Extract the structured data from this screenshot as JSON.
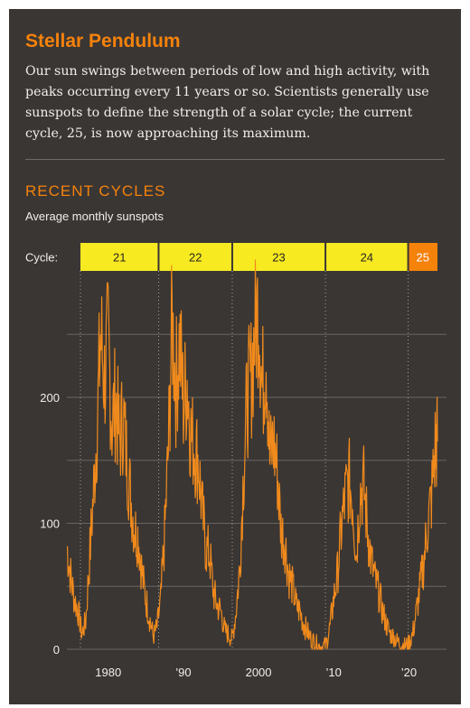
{
  "header": {
    "title": "Stellar Pendulum",
    "intro": "Our sun swings between periods of low and high activity, with peaks occurring every 11 years or so. Scientists generally use sunspots to define the strength of a solar cycle; the current cycle, 25, is now approaching its maximum."
  },
  "section": {
    "title": "RECENT CYCLES",
    "subtitle": "Average monthly sunspots"
  },
  "colors": {
    "background": "#3a3634",
    "accent": "#f5820b",
    "line": "#f08a1c",
    "cycle_band": "#f7ea21",
    "current_cycle": "#f5820b",
    "text": "#f1eeea"
  },
  "chart_data": {
    "type": "line",
    "ylabel": "Average monthly sunspots",
    "ylim": [
      0,
      280
    ],
    "xlim": [
      1974.5,
      2023.8
    ],
    "yticks": [
      {
        "value": 0,
        "label": "0"
      },
      {
        "value": 100,
        "label": "100"
      },
      {
        "value": 200,
        "label": "200"
      }
    ],
    "gridlines": [
      0,
      50,
      100,
      150,
      200,
      250
    ],
    "xticks": [
      {
        "value": 1980,
        "label": "1980"
      },
      {
        "value": 1990,
        "label": "’90"
      },
      {
        "value": 2000,
        "label": "2000"
      },
      {
        "value": 2010,
        "label": "’10"
      },
      {
        "value": 2020,
        "label": "’20"
      }
    ],
    "cycle_label": "Cycle:",
    "cycles": [
      {
        "label": "21",
        "start": 1976.3,
        "end": 1986.7,
        "current": false
      },
      {
        "label": "22",
        "start": 1986.7,
        "end": 1996.5,
        "current": false
      },
      {
        "label": "23",
        "start": 1996.5,
        "end": 2008.9,
        "current": false
      },
      {
        "label": "24",
        "start": 2008.9,
        "end": 2019.9,
        "current": false
      },
      {
        "label": "25",
        "start": 2019.9,
        "end": 2023.8,
        "current": true
      }
    ],
    "series": [
      {
        "x": [
          1974.5,
          1975.0,
          1975.5,
          1976.0,
          1976.5,
          1977.0,
          1977.5,
          1978.0,
          1978.5,
          1979.0,
          1979.5,
          1980.0,
          1980.5,
          1981.0,
          1981.5,
          1982.0,
          1982.5,
          1983.0,
          1983.5,
          1984.0,
          1984.5,
          1985.0,
          1985.5,
          1986.0,
          1986.5,
          1987.0,
          1987.5,
          1988.0,
          1988.5,
          1989.0,
          1989.5,
          1990.0,
          1990.5,
          1991.0,
          1991.5,
          1992.0,
          1992.5,
          1993.0,
          1993.5,
          1994.0,
          1994.5,
          1995.0,
          1995.5,
          1996.0,
          1996.5,
          1997.0,
          1997.5,
          1998.0,
          1998.5,
          1999.0,
          1999.5,
          2000.0,
          2000.5,
          2001.0,
          2001.5,
          2002.0,
          2002.5,
          2003.0,
          2003.5,
          2004.0,
          2004.5,
          2005.0,
          2005.5,
          2006.0,
          2006.5,
          2007.0,
          2007.5,
          2008.0,
          2008.5,
          2009.0,
          2009.5,
          2010.0,
          2010.5,
          2011.0,
          2011.5,
          2012.0,
          2012.5,
          2013.0,
          2013.5,
          2014.0,
          2014.5,
          2015.0,
          2015.5,
          2016.0,
          2016.5,
          2017.0,
          2017.5,
          2018.0,
          2018.5,
          2019.0,
          2019.5,
          2020.0,
          2020.5,
          2021.0,
          2021.5,
          2022.0,
          2022.5,
          2023.0,
          2023.5,
          2023.8
        ],
        "y": [
          82,
          58,
          40,
          30,
          12,
          22,
          70,
          120,
          175,
          250,
          215,
          245,
          180,
          200,
          165,
          185,
          150,
          120,
          95,
          90,
          60,
          40,
          25,
          10,
          18,
          40,
          90,
          160,
          260,
          210,
          245,
          195,
          215,
          170,
          160,
          150,
          110,
          80,
          75,
          45,
          35,
          30,
          15,
          12,
          8,
          30,
          65,
          140,
          200,
          215,
          250,
          275,
          205,
          240,
          150,
          165,
          140,
          95,
          85,
          60,
          50,
          35,
          30,
          20,
          14,
          8,
          6,
          3,
          2,
          4,
          18,
          40,
          60,
          95,
          120,
          135,
          120,
          75,
          125,
          130,
          95,
          70,
          55,
          45,
          30,
          20,
          12,
          10,
          6,
          4,
          3,
          5,
          12,
          30,
          50,
          70,
          100,
          120,
          160,
          165
        ]
      }
    ]
  }
}
